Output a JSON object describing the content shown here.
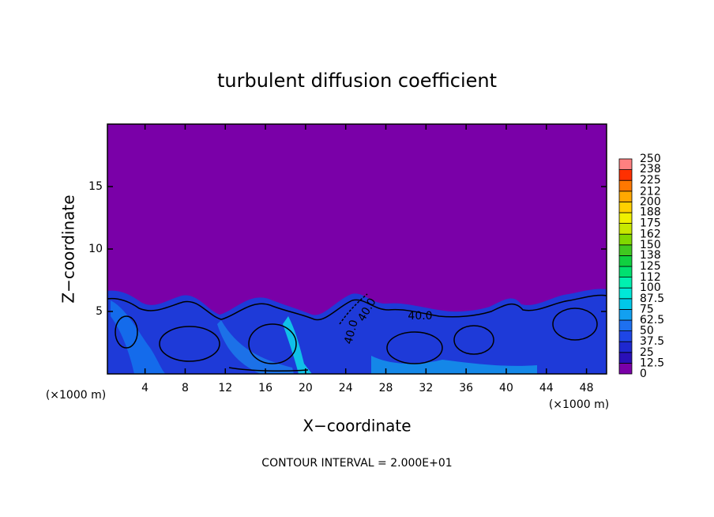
{
  "chart_data": {
    "type": "contour",
    "title": "turbulent diffusion coefficient",
    "xlabel": "X−coordinate",
    "ylabel": "Z−coordinate",
    "x_unit": "(×1000 m)",
    "footer": "CONTOUR INTERVAL = 2.000E+01",
    "xlim": [
      0.25,
      50
    ],
    "xticks": [
      4,
      8,
      12,
      16,
      20,
      24,
      28,
      32,
      36,
      40,
      44,
      48
    ],
    "ylim": [
      0,
      20
    ],
    "yticks": [
      5,
      10,
      15
    ],
    "contour_labels": [
      "40.0",
      "40.0",
      "40.0"
    ],
    "levels": [
      0,
      12.5,
      25,
      37.5,
      50,
      62.5,
      75,
      87.5,
      100,
      112,
      125,
      138,
      150,
      162,
      175,
      188,
      200,
      212,
      225,
      238,
      250
    ],
    "colors": [
      "#7a00a8",
      "#2a10b8",
      "#1e28d0",
      "#1e46e6",
      "#1e70f0",
      "#12a0f0",
      "#00c8e8",
      "#00e8d8",
      "#00f0b0",
      "#00e070",
      "#10d040",
      "#40c820",
      "#80d800",
      "#c8e800",
      "#f0f000",
      "#ffd000",
      "#ffa800",
      "#ff7800",
      "#ff3000",
      "#ff8080"
    ]
  }
}
